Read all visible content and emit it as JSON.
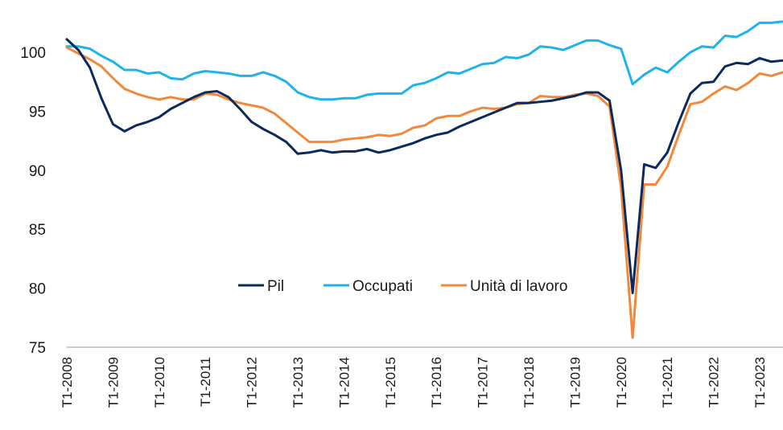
{
  "chart_data": {
    "type": "line",
    "title": "",
    "xlabel": "",
    "ylabel": "",
    "ylim": [
      75,
      103
    ],
    "yticks": [
      75,
      80,
      85,
      90,
      95,
      100
    ],
    "grid": false,
    "legend_position": "center",
    "x_tick_labels": [
      "T1-2008",
      "T1-2009",
      "T1-2010",
      "T1-2011",
      "T1-2012",
      "T1-2013",
      "T1-2014",
      "T1-2015",
      "T1-2016",
      "T1-2017",
      "T1-2018",
      "T1-2019",
      "T1-2020",
      "T1-2021",
      "T1-2022",
      "T1-2023"
    ],
    "x": [
      "T1-2008",
      "T2-2008",
      "T3-2008",
      "T4-2008",
      "T1-2009",
      "T2-2009",
      "T3-2009",
      "T4-2009",
      "T1-2010",
      "T2-2010",
      "T3-2010",
      "T4-2010",
      "T1-2011",
      "T2-2011",
      "T3-2011",
      "T4-2011",
      "T1-2012",
      "T2-2012",
      "T3-2012",
      "T4-2012",
      "T1-2013",
      "T2-2013",
      "T3-2013",
      "T4-2013",
      "T1-2014",
      "T2-2014",
      "T3-2014",
      "T4-2014",
      "T1-2015",
      "T2-2015",
      "T3-2015",
      "T4-2015",
      "T1-2016",
      "T2-2016",
      "T3-2016",
      "T4-2016",
      "T1-2017",
      "T2-2017",
      "T3-2017",
      "T4-2017",
      "T1-2018",
      "T2-2018",
      "T3-2018",
      "T4-2018",
      "T1-2019",
      "T2-2019",
      "T3-2019",
      "T4-2019",
      "T1-2020",
      "T2-2020",
      "T3-2020",
      "T4-2020",
      "T1-2021",
      "T2-2021",
      "T3-2021",
      "T4-2021",
      "T1-2022",
      "T2-2022",
      "T3-2022",
      "T4-2022",
      "T1-2023",
      "T2-2023",
      "T3-2023"
    ],
    "series": [
      {
        "name": "Pil",
        "color": "#0d2a5e",
        "values": [
          101.1,
          100.2,
          98.7,
          96.1,
          93.9,
          93.3,
          93.8,
          94.1,
          94.5,
          95.2,
          95.7,
          96.2,
          96.6,
          96.7,
          96.2,
          95.2,
          94.1,
          93.5,
          93.0,
          92.4,
          91.4,
          91.5,
          91.7,
          91.5,
          91.6,
          91.6,
          91.8,
          91.5,
          91.7,
          92.0,
          92.3,
          92.7,
          93.0,
          93.2,
          93.7,
          94.1,
          94.5,
          94.9,
          95.3,
          95.7,
          95.7,
          95.8,
          95.9,
          96.1,
          96.3,
          96.6,
          96.6,
          95.9,
          90.0,
          79.6,
          90.5,
          90.2,
          91.5,
          94.1,
          96.5,
          97.4,
          97.5,
          98.8,
          99.1,
          99.0,
          99.5,
          99.2,
          99.3
        ]
      },
      {
        "name": "Occupati",
        "color": "#1fb3ea",
        "values": [
          100.5,
          100.5,
          100.3,
          99.7,
          99.2,
          98.5,
          98.5,
          98.2,
          98.3,
          97.8,
          97.7,
          98.2,
          98.4,
          98.3,
          98.2,
          98.0,
          98.0,
          98.3,
          98.0,
          97.5,
          96.6,
          96.2,
          96.0,
          96.0,
          96.1,
          96.1,
          96.4,
          96.5,
          96.5,
          96.5,
          97.2,
          97.4,
          97.8,
          98.3,
          98.2,
          98.6,
          99.0,
          99.1,
          99.6,
          99.5,
          99.8,
          100.5,
          100.4,
          100.2,
          100.6,
          101.0,
          101.0,
          100.6,
          100.3,
          97.3,
          98.1,
          98.7,
          98.3,
          99.2,
          100.0,
          100.5,
          100.4,
          101.4,
          101.3,
          101.8,
          102.5,
          102.5,
          102.6
        ]
      },
      {
        "name": "Unità di lavoro",
        "color": "#f0893b",
        "values": [
          100.4,
          99.9,
          99.4,
          98.8,
          97.8,
          96.9,
          96.5,
          96.2,
          96.0,
          96.2,
          96.0,
          96.0,
          96.5,
          96.4,
          96.0,
          95.7,
          95.5,
          95.3,
          94.8,
          94.0,
          93.2,
          92.4,
          92.4,
          92.4,
          92.6,
          92.7,
          92.8,
          93.0,
          92.9,
          93.1,
          93.6,
          93.8,
          94.4,
          94.6,
          94.6,
          95.0,
          95.3,
          95.2,
          95.3,
          95.6,
          95.7,
          96.3,
          96.2,
          96.2,
          96.4,
          96.5,
          96.3,
          95.4,
          88.5,
          75.8,
          88.8,
          88.8,
          90.3,
          93.0,
          95.6,
          95.8,
          96.5,
          97.1,
          96.8,
          97.4,
          98.2,
          98.0,
          98.3
        ]
      }
    ]
  }
}
